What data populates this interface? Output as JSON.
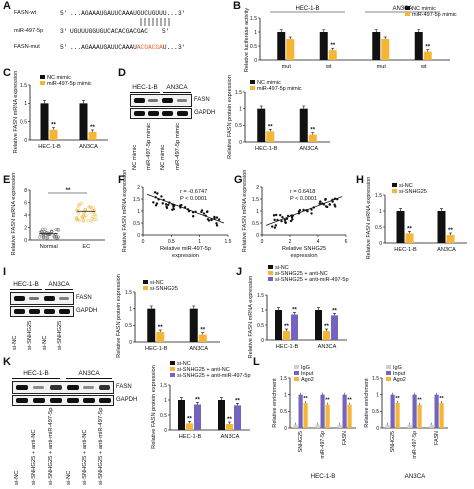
{
  "panels": {
    "A": "A",
    "B": "B",
    "C": "C",
    "D": "D",
    "E": "E",
    "F": "F",
    "G": "G",
    "H": "H",
    "I": "I",
    "J": "J",
    "K": "K",
    "L": "L"
  },
  "seqA": {
    "wt_name": "FASN-wt",
    "wt_5": "5'",
    "wt_seq": "...AGAAAUGAUUCAAAUGUCUGUUU...",
    "wt_3": "3'",
    "mir_name": "miR-497-5p",
    "mir_3": "3'",
    "mir_seq": "UGUUUGGUGUCACACGACGAC",
    "mir_5": "5'",
    "mut_name": "FASN-mut",
    "mut_5": "5'",
    "mut_seq_a": "...AGAAAUGAUUCAAAU",
    "mut_seq_b": "ACGACGA",
    "mut_seq_c": "U...",
    "mut_3": "3'"
  },
  "colors": {
    "black": "#111111",
    "orange": "#f5b535",
    "purple": "#7563c0",
    "red": "#e8632b",
    "grey": "#cfcfcf"
  },
  "legend": {
    "nc_mimic": "NC mimic",
    "mir_mimic": "miR-497-5p mimic",
    "si_nc": "si-NC",
    "si_snhg25": "si-SNHG25",
    "snhg25_antinc": "si-SNHG25 + anti-NC",
    "snhg25_antimir": "si-SNHG25 + anti-miR-497-5p",
    "igg": "IgG",
    "input": "Input",
    "ago2": "Ago2"
  },
  "labels": {
    "luciferase": "Relative luciferase activity",
    "fasn_mrna": "Relative FASN mRNA expression",
    "fasn_protein": "Relative FASN protein expression",
    "enrichment": "Relative enrichment",
    "mir_expr": "Relative miR-497-5p expression",
    "snhg_expr": "Relative SNHG25 expression",
    "fasn_mrna_short": "Relative FASN mRNA expression",
    "hec": "HEC-1-B",
    "an3ca": "AN3CA",
    "mut": "mut",
    "wt": "wt",
    "normal": "Normal",
    "ec": "EC",
    "fasn": "FASN",
    "gapdh": "GAPDH",
    "snhg25": "SNHG25",
    "mir497": "miR-497-5p",
    "sig": "**"
  },
  "stats": {
    "F_r": "r = -0.6747",
    "F_p": "P < 0.0001",
    "G_r": "r = 0.6418",
    "G_p": "P < 0.0001"
  },
  "blots": {
    "D_lanes": [
      "NC mimic",
      "miR-497-5p mimic",
      "NC mimic",
      "miR-497-5p mimic"
    ],
    "I_lanes": [
      "si-NC",
      "si-SNHG25",
      "si-NC",
      "si-SNHG25"
    ],
    "K_lanes": [
      "si-NC",
      "si-SNHG25 + anti-NC",
      "si-SNHG25 + anti-miR-497-5p",
      "si-NC",
      "si-SNHG25 + anti-NC",
      "si-SNHG25 + anti-miR-497-5p"
    ],
    "D_fasn": [
      1.0,
      0.4,
      1.0,
      0.35
    ],
    "I_fasn": [
      1.0,
      0.4,
      1.0,
      0.35
    ],
    "K_fasn": [
      1.0,
      0.3,
      0.85,
      1.0,
      0.3,
      0.85
    ]
  },
  "chart_data": [
    {
      "panel": "B",
      "type": "bar",
      "series": [
        {
          "name": "NC mimic",
          "color": "#111111"
        },
        {
          "name": "miR-497-5p mimic",
          "color": "#f5b535"
        }
      ],
      "groups": [
        {
          "title": "HEC-1-B",
          "categories": [
            "mut",
            "wt"
          ],
          "values": [
            [
              1.0,
              0.75
            ],
            [
              1.0,
              0.35
            ]
          ]
        },
        {
          "title": "AN3CA",
          "categories": [
            "mut",
            "wt"
          ],
          "values": [
            [
              1.0,
              0.75
            ],
            [
              1.0,
              0.3
            ]
          ]
        }
      ],
      "ylim": [
        0,
        1.5
      ],
      "yticks": [
        0,
        0.5,
        1.0,
        1.5
      ],
      "sig": [
        [
          false,
          true
        ],
        [
          false,
          true
        ]
      ]
    },
    {
      "panel": "C",
      "type": "bar",
      "categories": [
        "HEC-1-B",
        "AN3CA"
      ],
      "series": [
        {
          "name": "NC mimic",
          "values": [
            1.0,
            1.0
          ]
        },
        {
          "name": "miR-497-5p mimic",
          "values": [
            0.28,
            0.22
          ]
        }
      ],
      "ylim": [
        0,
        1.5
      ],
      "yticks": [
        0,
        0.5,
        1.0,
        1.5
      ]
    },
    {
      "panel": "D",
      "type": "bar",
      "categories": [
        "HEC-1-B",
        "AN3CA"
      ],
      "series": [
        {
          "name": "NC mimic",
          "values": [
            1.0,
            1.0
          ]
        },
        {
          "name": "miR-497-5p mimic",
          "values": [
            0.32,
            0.22
          ]
        }
      ],
      "ylim": [
        0,
        1.5
      ],
      "yticks": [
        0,
        0.5,
        1.0,
        1.5
      ]
    },
    {
      "panel": "E",
      "type": "scatter",
      "categories": [
        "Normal",
        "EC"
      ],
      "means": [
        1.0,
        4.6
      ],
      "ylim": [
        0,
        8
      ],
      "yticks": [
        0,
        2,
        4,
        6,
        8
      ]
    },
    {
      "panel": "F",
      "type": "scatter",
      "xlabel": "Relative miR-497-5p expression",
      "ylabel": "Relative FASN mRNA expression",
      "xlim": [
        0,
        1.5
      ],
      "ylim": [
        0,
        2
      ],
      "xticks": [
        0,
        0.5,
        1.0,
        1.5
      ],
      "yticks": [
        0,
        0.5,
        1.0,
        1.5,
        2.0
      ]
    },
    {
      "panel": "G",
      "type": "scatter",
      "xlabel": "Relative SNHG25 expression",
      "ylabel": "Relative FASN mRNA expression",
      "xlim": [
        0,
        6
      ],
      "ylim": [
        0,
        2
      ],
      "xticks": [
        0,
        2,
        4,
        6
      ],
      "yticks": [
        0,
        0.5,
        1.0,
        1.5,
        2.0
      ]
    },
    {
      "panel": "H",
      "type": "bar",
      "categories": [
        "HEC-1-B",
        "AN3CA"
      ],
      "series": [
        {
          "name": "si-NC",
          "values": [
            1.0,
            1.0
          ]
        },
        {
          "name": "si-SNHG25",
          "values": [
            0.3,
            0.25
          ]
        }
      ],
      "ylim": [
        0,
        1.5
      ],
      "yticks": [
        0,
        0.5,
        1.0,
        1.5
      ]
    },
    {
      "panel": "I",
      "type": "bar",
      "categories": [
        "HEC-1-B",
        "AN3CA"
      ],
      "series": [
        {
          "name": "si-NC",
          "values": [
            1.0,
            1.0
          ]
        },
        {
          "name": "si-SNHG25",
          "values": [
            0.3,
            0.22
          ]
        }
      ],
      "ylim": [
        0,
        1.5
      ],
      "yticks": [
        0,
        0.5,
        1.0,
        1.5
      ]
    },
    {
      "panel": "J",
      "type": "bar",
      "categories": [
        "HEC-1-B",
        "AN3CA"
      ],
      "series": [
        {
          "name": "si-NC",
          "values": [
            1.0,
            1.0
          ]
        },
        {
          "name": "si-SNHG25 + anti-NC",
          "values": [
            0.3,
            0.3
          ]
        },
        {
          "name": "si-SNHG25 + anti-miR-497-5p",
          "values": [
            0.85,
            0.82
          ]
        }
      ],
      "ylim": [
        0,
        1.5
      ],
      "yticks": [
        0,
        0.5,
        1.0,
        1.5
      ]
    },
    {
      "panel": "K",
      "type": "bar",
      "categories": [
        "HEC-1-B",
        "AN3CA"
      ],
      "series": [
        {
          "name": "si-NC",
          "values": [
            1.0,
            1.0
          ]
        },
        {
          "name": "si-SNHG25 + anti-NC",
          "values": [
            0.22,
            0.2
          ]
        },
        {
          "name": "si-SNHG25 + anti-miR-497-5p",
          "values": [
            0.85,
            0.82
          ]
        }
      ],
      "ylim": [
        0,
        1.5
      ],
      "yticks": [
        0,
        0.5,
        1.0,
        1.5
      ]
    },
    {
      "panel": "L",
      "type": "bar",
      "groups": [
        {
          "title": "HEC-1-B",
          "categories": [
            "SNHG25",
            "miR-497-5p",
            "FASN"
          ],
          "series": [
            {
              "name": "IgG",
              "values": [
                0.1,
                0.1,
                0.1
              ]
            },
            {
              "name": "Input",
              "values": [
                1.0,
                1.0,
                1.0
              ]
            },
            {
              "name": "Ago2",
              "values": [
                0.75,
                0.7,
                0.7
              ]
            }
          ]
        },
        {
          "title": "AN3CA",
          "categories": [
            "SNHG25",
            "miR-497-5p",
            "FASN"
          ],
          "series": [
            {
              "name": "IgG",
              "values": [
                0.1,
                0.1,
                0.1
              ]
            },
            {
              "name": "Input",
              "values": [
                1.0,
                1.0,
                1.0
              ]
            },
            {
              "name": "Ago2",
              "values": [
                0.75,
                0.7,
                0.75
              ]
            }
          ]
        }
      ],
      "ylim": [
        0,
        1.5
      ],
      "yticks": [
        0,
        0.5,
        1.0,
        1.5
      ]
    }
  ]
}
